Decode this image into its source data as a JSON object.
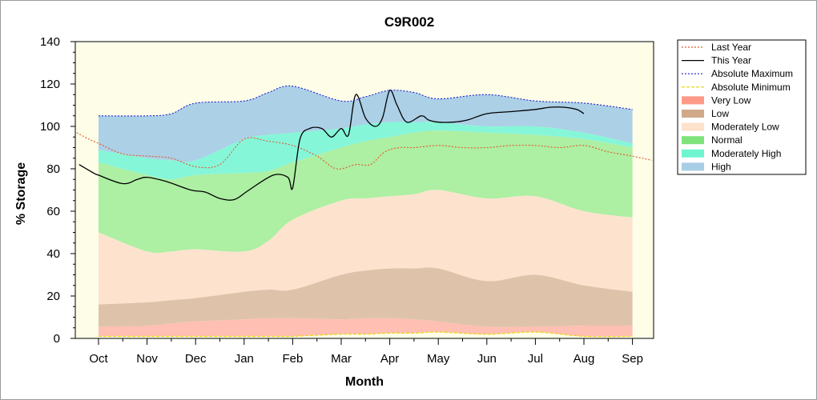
{
  "chart_data": {
    "type": "area",
    "title": "C9R002",
    "xlabel": "Month",
    "ylabel": "% Storage",
    "ylim": [
      0,
      140
    ],
    "yticks": [
      0,
      20,
      40,
      60,
      80,
      100,
      120,
      140
    ],
    "categories": [
      "Oct",
      "Nov",
      "Dec",
      "Jan",
      "Feb",
      "Mar",
      "Apr",
      "May",
      "Jun",
      "Jul",
      "Aug",
      "Sep"
    ],
    "grid": false,
    "legend_position": "right",
    "bands": [
      {
        "name": "High",
        "color": "#a8cde6",
        "x": [
          0,
          1,
          1.5,
          2,
          3,
          3.5,
          4,
          5,
          5.5,
          6,
          6.5,
          7,
          8,
          9,
          10,
          11
        ],
        "lower": [
          89,
          85,
          84,
          84,
          94,
          96,
          97,
          99,
          101,
          102,
          102,
          102,
          100,
          100,
          97,
          92
        ],
        "upper": [
          105,
          105,
          106,
          111,
          112,
          116,
          119,
          112,
          114,
          117,
          116,
          113,
          115,
          112,
          111,
          108
        ]
      },
      {
        "name": "Moderately High",
        "color": "#7ff5d8",
        "x": [
          0,
          1,
          1.5,
          2,
          3,
          3.5,
          4,
          5,
          5.5,
          6,
          6.5,
          7,
          8,
          9,
          10,
          11
        ],
        "lower": [
          83,
          77,
          75,
          77,
          78,
          79,
          83,
          90,
          93,
          95,
          97,
          98,
          97,
          96,
          94,
          90
        ],
        "upper": [
          89,
          85,
          84,
          84,
          94,
          96,
          97,
          99,
          101,
          102,
          102,
          102,
          100,
          100,
          97,
          92
        ]
      },
      {
        "name": "Normal",
        "color": "#a9ee9f",
        "x": [
          0,
          1,
          1.5,
          2,
          3,
          3.5,
          4,
          5,
          5.5,
          6,
          6.5,
          7,
          8,
          9,
          10,
          11
        ],
        "lower": [
          50,
          41,
          41,
          42,
          41,
          46,
          56,
          65,
          66,
          67,
          68,
          70,
          66,
          67,
          60,
          57
        ],
        "upper": [
          83,
          77,
          75,
          77,
          78,
          79,
          83,
          90,
          93,
          95,
          97,
          98,
          97,
          96,
          94,
          90
        ]
      },
      {
        "name": "Moderately Low",
        "color": "#fde2cc",
        "x": [
          0,
          1,
          1.5,
          2,
          3,
          3.5,
          4,
          5,
          5.5,
          6,
          6.5,
          7,
          8,
          9,
          10,
          11
        ],
        "lower": [
          16,
          17,
          18,
          19,
          22,
          23,
          23,
          30,
          32,
          33,
          33,
          33,
          27,
          30,
          25,
          22
        ],
        "upper": [
          50,
          41,
          41,
          42,
          41,
          46,
          56,
          65,
          66,
          67,
          68,
          70,
          66,
          67,
          60,
          57
        ]
      },
      {
        "name": "Low",
        "color": "#dcc0a6",
        "x": [
          0,
          1,
          1.5,
          2,
          3,
          3.5,
          4,
          5,
          5.5,
          6,
          6.5,
          7,
          8,
          9,
          10,
          11
        ],
        "lower": [
          5.5,
          6,
          7,
          8,
          9,
          9.5,
          9.5,
          9,
          9.5,
          9.5,
          9,
          8,
          5.5,
          5.5,
          6,
          6
        ],
        "upper": [
          16,
          17,
          18,
          19,
          22,
          23,
          23,
          30,
          32,
          33,
          33,
          33,
          27,
          30,
          25,
          22
        ]
      },
      {
        "name": "Very Low",
        "color": "#ffbcb0",
        "x": [
          0,
          1,
          1.5,
          2,
          3,
          3.5,
          4,
          5,
          5.5,
          6,
          6.5,
          7,
          8,
          9,
          10,
          11
        ],
        "lower": [
          1,
          1,
          1,
          1,
          1,
          1,
          1,
          2,
          2,
          2.5,
          2.5,
          3,
          2,
          3,
          1,
          1
        ],
        "upper": [
          5.5,
          6,
          7,
          8,
          9,
          9.5,
          9.5,
          9,
          9.5,
          9.5,
          9,
          8,
          5.5,
          5.5,
          6,
          6
        ]
      }
    ],
    "series": [
      {
        "name": "Last Year",
        "color": "#e0592a",
        "style": "dotted",
        "x": [
          -0.45,
          -0.2,
          0,
          0.5,
          1,
          1.5,
          2,
          2.5,
          3,
          3.5,
          4,
          4.5,
          4.9,
          5.3,
          5.6,
          5.9,
          6.2,
          6.5,
          7,
          7.5,
          8,
          8.5,
          9,
          9.5,
          10,
          10.5,
          11,
          11.4
        ],
        "y": [
          97,
          94,
          92,
          87,
          86,
          85,
          81,
          82,
          94,
          93,
          91,
          86,
          80,
          82,
          82,
          88,
          90,
          90,
          91,
          90,
          90,
          91,
          91,
          90,
          91,
          88,
          86,
          84
        ]
      },
      {
        "name": "This Year",
        "color": "#000000",
        "style": "solid",
        "x": [
          -0.4,
          -0.1,
          0,
          0.5,
          0.8,
          1,
          1.4,
          1.9,
          2.2,
          2.5,
          2.8,
          3.1,
          3.6,
          3.9,
          4,
          4.15,
          4.35,
          4.6,
          4.8,
          5,
          5.15,
          5.3,
          5.5,
          5.7,
          5.85,
          6,
          6.15,
          6.35,
          6.65,
          6.8,
          7,
          7.3,
          7.6,
          8,
          8.5,
          9,
          9.3,
          9.6,
          9.85,
          10
        ],
        "y": [
          82,
          78,
          77,
          73,
          75,
          76,
          74,
          70,
          69,
          66,
          65.5,
          70,
          77,
          76,
          71,
          94,
          99,
          99,
          95,
          99,
          96,
          115,
          104,
          100,
          104,
          117,
          110,
          102,
          105,
          103,
          102,
          102,
          103,
          106,
          107,
          108,
          109,
          109,
          108,
          106
        ]
      },
      {
        "name": "Absolute Maximum",
        "color": "#2020d0",
        "style": "dotted",
        "x": [
          0,
          1,
          1.5,
          2,
          3,
          3.5,
          4,
          5,
          5.5,
          6,
          6.5,
          7,
          8,
          9,
          10,
          11
        ],
        "y": [
          105,
          105,
          106,
          111,
          112,
          116,
          119,
          112,
          114,
          117,
          116,
          113,
          115,
          112,
          111,
          108
        ]
      },
      {
        "name": "Absolute Minimum",
        "color": "#e6d800",
        "style": "dotted",
        "x": [
          0,
          1,
          1.5,
          2,
          3,
          3.5,
          4,
          5,
          5.5,
          6,
          6.5,
          7,
          8,
          9,
          10,
          11
        ],
        "y": [
          1,
          1,
          1,
          1,
          1,
          1,
          1,
          2,
          2,
          2.5,
          2.5,
          3,
          2,
          3,
          1,
          1
        ]
      }
    ],
    "legend": [
      {
        "label": "Last Year",
        "kind": "line",
        "color": "#e0592a",
        "dash": "2 2"
      },
      {
        "label": "This Year",
        "kind": "line",
        "color": "#000000",
        "dash": ""
      },
      {
        "label": "Absolute Maximum",
        "kind": "line",
        "color": "#2020d0",
        "dash": "2 2"
      },
      {
        "label": "Absolute Minimum",
        "kind": "line",
        "color": "#e6d800",
        "dash": "4 2"
      },
      {
        "label": "Very Low",
        "kind": "area",
        "color": "#ff9a88"
      },
      {
        "label": "Low",
        "kind": "area",
        "color": "#cfa98a"
      },
      {
        "label": "Moderately Low",
        "kind": "area",
        "color": "#fde2cc"
      },
      {
        "label": "Normal",
        "kind": "area",
        "color": "#7ee37a"
      },
      {
        "label": "Moderately High",
        "kind": "area",
        "color": "#6ff5d0"
      },
      {
        "label": "High",
        "kind": "area",
        "color": "#a8cde6"
      }
    ],
    "plot_background": "#fdfde8"
  }
}
